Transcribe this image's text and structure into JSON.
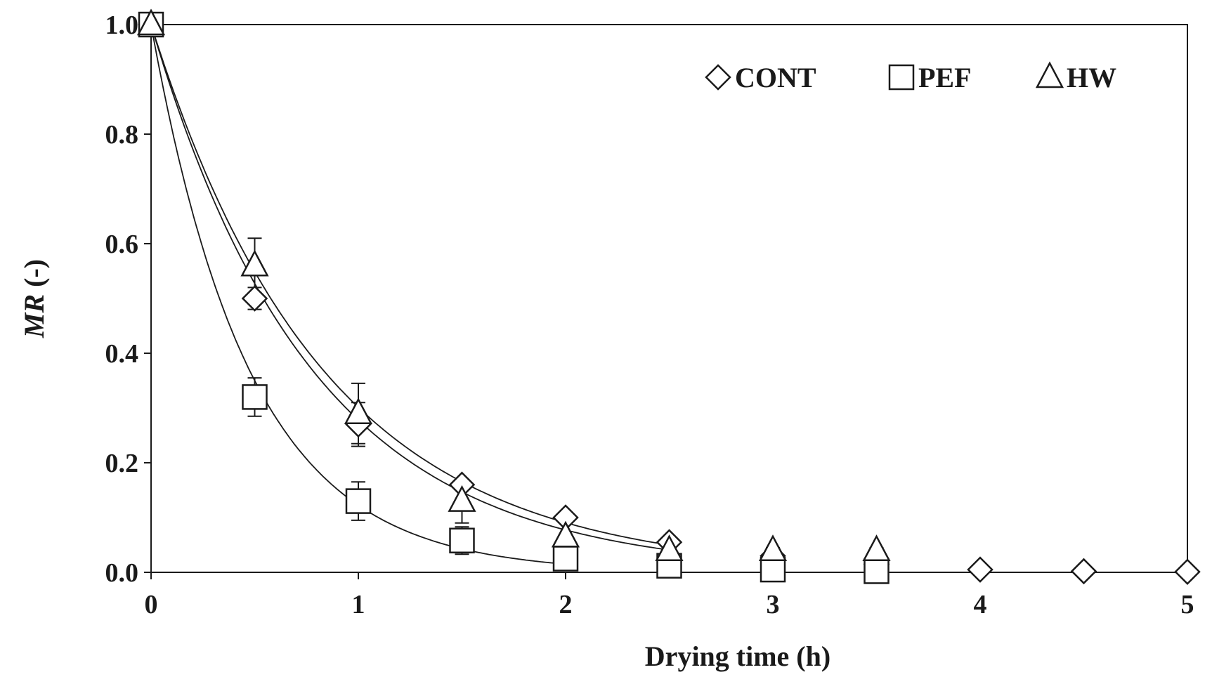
{
  "chart_data": {
    "type": "scatter",
    "title": "",
    "xlabel": "Drying time (h)",
    "ylabel": {
      "italic": "MR",
      "rest": " (-)"
    },
    "xlim": [
      0,
      5
    ],
    "ylim": [
      0,
      1.0
    ],
    "x_ticks": [
      "0",
      "1",
      "2",
      "3",
      "4",
      "5"
    ],
    "y_ticks": [
      "0.0",
      "0.2",
      "0.4",
      "0.6",
      "0.8",
      "1.0"
    ],
    "grid": false,
    "legend_position": "top-right",
    "colors": {
      "marks": "#1a1a1a",
      "background": "#ffffff"
    },
    "series": [
      {
        "name": "CONT",
        "marker": "diamond-icon",
        "x": [
          0,
          0.5,
          1,
          1.5,
          2,
          2.5,
          3,
          3.5,
          4,
          4.5,
          5
        ],
        "y": [
          1.0,
          0.5,
          0.27,
          0.16,
          0.1,
          0.055,
          0.03,
          0.015,
          0.005,
          0.002,
          0.001
        ],
        "error": [
          0,
          0.02,
          0.04,
          0.01,
          0.01,
          0.005,
          0.005,
          0.005,
          0,
          0,
          0
        ],
        "fit_k": 1.2
      },
      {
        "name": "PEF",
        "marker": "square-icon",
        "x": [
          0,
          0.5,
          1,
          1.5,
          2,
          2.5,
          3,
          3.5
        ],
        "y": [
          1.0,
          0.32,
          0.13,
          0.058,
          0.025,
          0.012,
          0.005,
          0.002
        ],
        "error": [
          0,
          0.035,
          0.035,
          0.025,
          0.015,
          0,
          0,
          0
        ],
        "fit_k": 2.1
      },
      {
        "name": "HW",
        "marker": "triangle-icon",
        "x": [
          0,
          0.5,
          1,
          1.5,
          2,
          2.5,
          3,
          3.5
        ],
        "y": [
          1.0,
          0.56,
          0.29,
          0.13,
          0.065,
          0.04,
          0.04,
          0.04
        ],
        "error": [
          0,
          0.05,
          0.055,
          0.04,
          0.035,
          0.01,
          0.005,
          0.005
        ],
        "fit_k": 1.28
      }
    ]
  }
}
